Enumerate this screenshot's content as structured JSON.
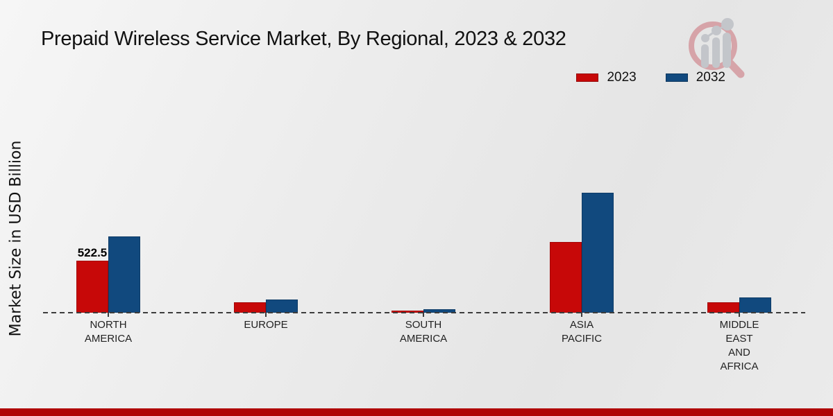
{
  "title": "Prepaid Wireless Service Market, By Regional, 2023 & 2032",
  "branding": {
    "watermark_icon": "magnifier-growth-chart-logo",
    "footer_bar_color": "#b00505"
  },
  "legend": {
    "position": "top-right",
    "items": [
      {
        "label": "2023",
        "color": "#c70808"
      },
      {
        "label": "2032",
        "color": "#11497e"
      }
    ]
  },
  "chart_data": {
    "type": "bar",
    "title": "Prepaid Wireless Service Market, By Regional, 2023 & 2032",
    "ylabel": "Market Size in USD Billion",
    "xlabel": "",
    "categories": [
      "NORTH\nAMERICA",
      "EUROPE",
      "SOUTH\nAMERICA",
      "ASIA\nPACIFIC",
      "MIDDLE\nEAST\nAND\nAFRICA"
    ],
    "series": [
      {
        "name": "2023",
        "color": "#c70808",
        "values": [
          522.5,
          104,
          21,
          710,
          104
        ],
        "data_labels": [
          "522.5",
          "",
          "",
          "",
          ""
        ]
      },
      {
        "name": "2032",
        "color": "#11497e",
        "values": [
          766,
          132,
          38,
          1205,
          153
        ],
        "data_labels": [
          "",
          "",
          "",
          "",
          ""
        ]
      }
    ],
    "ylim": [
      0,
      1250
    ],
    "grid": false,
    "legend_position": "top-right",
    "zero_line_style": "dashed"
  }
}
